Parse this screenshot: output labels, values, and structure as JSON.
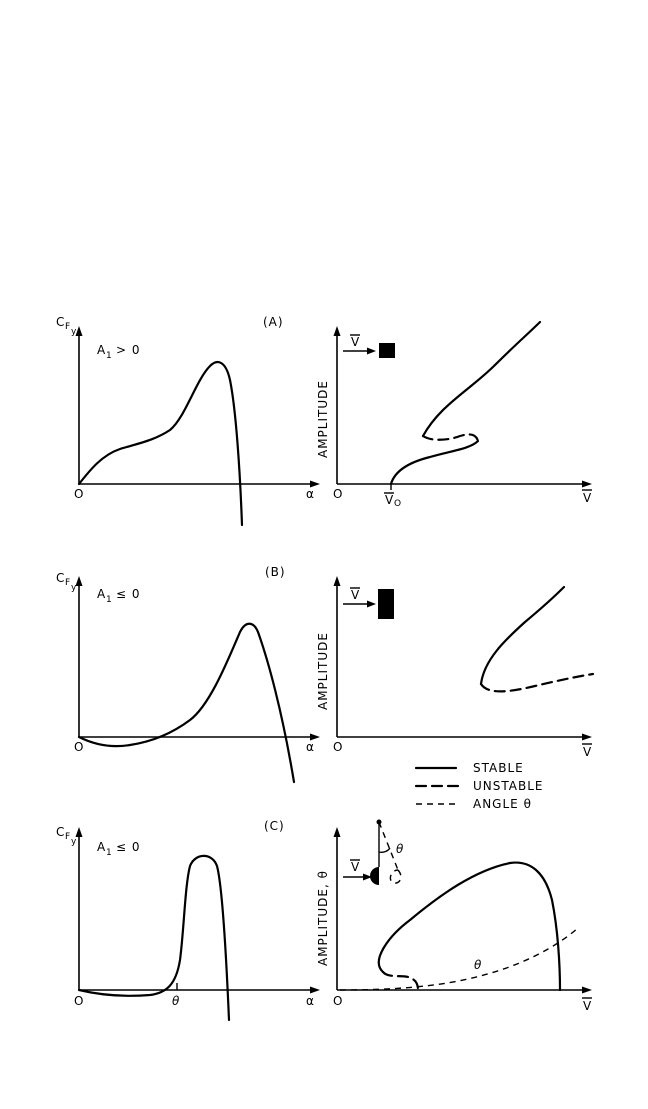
{
  "panels": {
    "A": {
      "tag": "(A)",
      "cfy_main": "C",
      "cfy_sub1": "F",
      "cfy_sub2": "y",
      "cond_main": "A",
      "cond_sub": "1",
      "cond_rest": "> 0",
      "origin": "O",
      "alpha": "α",
      "amp_label": "AMPLITUDE",
      "origin_r": "O",
      "vbar": "V",
      "v0": "V",
      "v0_sub": "O",
      "vflow": "V"
    },
    "B": {
      "tag": "(B)",
      "cfy_main": "C",
      "cfy_sub1": "F",
      "cfy_sub2": "y",
      "cond_main": "A",
      "cond_sub": "1",
      "cond_rest": "≤ 0",
      "origin": "O",
      "alpha": "α",
      "amp_label": "AMPLITUDE",
      "origin_r": "O",
      "vbar": "V",
      "vflow": "V"
    },
    "C": {
      "tag": "(C)",
      "cfy_main": "C",
      "cfy_sub1": "F",
      "cfy_sub2": "y",
      "cond_main": "A",
      "cond_sub": "1",
      "cond_rest": "≤ 0",
      "origin": "O",
      "alpha": "α",
      "theta_tick": "θ",
      "amp_label": "AMPLITUDE, θ",
      "origin_r": "O",
      "vbar": "V",
      "vflow": "V",
      "theta_curve": "θ",
      "theta_sketch": "θ"
    }
  },
  "legend": {
    "stable": "STABLE",
    "unstable": "UNSTABLE",
    "angle": "ANGLE θ"
  }
}
